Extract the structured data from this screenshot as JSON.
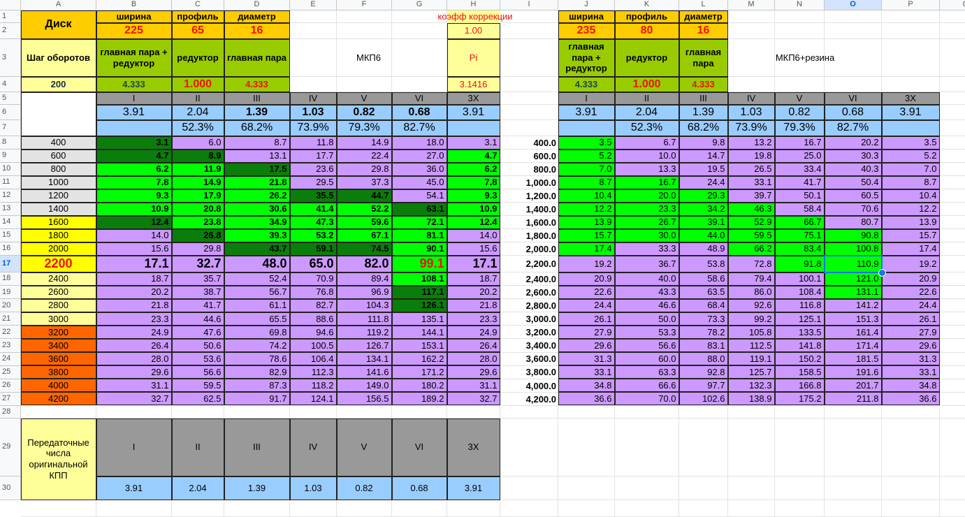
{
  "columns": [
    "A",
    "B",
    "C",
    "D",
    "E",
    "F",
    "G",
    "H",
    "I",
    "J",
    "K",
    "L",
    "M",
    "N",
    "O",
    "P",
    "Q"
  ],
  "selected_cell": "O17",
  "colors": {
    "purple": "#cc99ff",
    "green": "#00ff00",
    "dark_green": "#0b7d0b",
    "header_orange": "#ffcc00",
    "olive": "#99cc00",
    "light_yellow": "#ffff99",
    "yellow": "#ffff00",
    "orange": "#ff6600",
    "gray": "#999999",
    "blue": "#99ccff"
  },
  "left": {
    "disk_label": "Диск",
    "width_label": "ширина",
    "profile_label": "профиль",
    "diameter_label": "диаметр",
    "width": "225",
    "profile": "65",
    "diameter": "16",
    "correction_label": "коэфф коррекции",
    "correction": "1.00",
    "pi_label": "Pi",
    "pi": "3.1416",
    "step_label": "Шаг оборотов",
    "step": "200",
    "main_pair_reducer_label": "главная пара + редуктор",
    "reducer_label": "редуктор",
    "main_pair_label": "главная пара",
    "main_pair_reducer": "4.333",
    "reducer": "1.000",
    "main_pair": "4.333",
    "gearbox_label": "МКП6",
    "gears": [
      "I",
      "II",
      "III",
      "IV",
      "V",
      "VI",
      "3X"
    ],
    "ratios": [
      "3.91",
      "2.04",
      "1.39",
      "1.03",
      "0.82",
      "0.68",
      "3.91"
    ],
    "percents": [
      "",
      "52.3%",
      "68.2%",
      "73.9%",
      "79.3%",
      "82.7%",
      ""
    ],
    "rows": [
      {
        "rpm": "400",
        "fill": "lgray",
        "cells": "dpppppp",
        "values": [
          "3.1",
          "6.0",
          "8.7",
          "11.8",
          "14.9",
          "18.0",
          "3.1"
        ]
      },
      {
        "rpm": "600",
        "fill": "lgray",
        "cells": "ddppppg",
        "values": [
          "4.7",
          "8.9",
          "13.1",
          "17.7",
          "22.4",
          "27.0",
          "4.7"
        ]
      },
      {
        "rpm": "800",
        "fill": "lgray",
        "cells": "ggdpppg",
        "values": [
          "6.2",
          "11.9",
          "17.5",
          "23.6",
          "29.8",
          "36.0",
          "6.2"
        ]
      },
      {
        "rpm": "1000",
        "fill": "lgray",
        "cells": "gggpppg",
        "values": [
          "7.8",
          "14.9",
          "21.8",
          "29.5",
          "37.3",
          "45.0",
          "7.8"
        ]
      },
      {
        "rpm": "1200",
        "fill": "lgray",
        "cells": "gggddpg",
        "values": [
          "9.3",
          "17.9",
          "26.2",
          "35.5",
          "44.7",
          "54.1",
          "9.3"
        ]
      },
      {
        "rpm": "1400",
        "fill": "lgray",
        "cells": "gggggdg",
        "values": [
          "10.9",
          "20.8",
          "30.6",
          "41.4",
          "52.2",
          "63.1",
          "10.9"
        ]
      },
      {
        "rpm": "1600",
        "fill": "yel",
        "cells": "dgggggg",
        "values": [
          "12.4",
          "23.8",
          "34.9",
          "47.3",
          "59.6",
          "72.1",
          "12.4"
        ]
      },
      {
        "rpm": "1800",
        "fill": "yel",
        "cells": "pdggggp",
        "values": [
          "14.0",
          "26.8",
          "39.3",
          "53.2",
          "67.1",
          "81.1",
          "14.0"
        ]
      },
      {
        "rpm": "2000",
        "fill": "yel",
        "cells": "ppdddgp",
        "values": [
          "15.6",
          "29.8",
          "43.7",
          "59.1",
          "74.5",
          "90.1",
          "15.6"
        ]
      },
      {
        "rpm": "2200",
        "fill": "yel",
        "cells": "pppppgp",
        "values": [
          "17.1",
          "32.7",
          "48.0",
          "65.0",
          "82.0",
          "99.1",
          "17.1"
        ]
      },
      {
        "rpm": "2400",
        "fill": "lyel",
        "cells": "pppppgp",
        "values": [
          "18.7",
          "35.7",
          "52.4",
          "70.9",
          "89.4",
          "108.1",
          "18.7"
        ]
      },
      {
        "rpm": "2600",
        "fill": "lyel",
        "cells": "pppppdp",
        "values": [
          "20.2",
          "38.7",
          "56.7",
          "76.8",
          "96.9",
          "117.1",
          "20.2"
        ]
      },
      {
        "rpm": "2800",
        "fill": "lyel",
        "cells": "pppppdp",
        "values": [
          "21.8",
          "41.7",
          "61.1",
          "82.7",
          "104.3",
          "126.1",
          "21.8"
        ]
      },
      {
        "rpm": "3000",
        "fill": "lyel",
        "cells": "ppppppp",
        "values": [
          "23.3",
          "44.6",
          "65.5",
          "88.6",
          "111.8",
          "135.1",
          "23.3"
        ]
      },
      {
        "rpm": "3200",
        "fill": "org2",
        "cells": "ppppppp",
        "values": [
          "24.9",
          "47.6",
          "69.8",
          "94.6",
          "119.2",
          "144.1",
          "24.9"
        ]
      },
      {
        "rpm": "3400",
        "fill": "org2",
        "cells": "ppppppp",
        "values": [
          "26.4",
          "50.6",
          "74.2",
          "100.5",
          "126.7",
          "153.1",
          "26.4"
        ]
      },
      {
        "rpm": "3600",
        "fill": "org2",
        "cells": "ppppppp",
        "values": [
          "28.0",
          "53.6",
          "78.6",
          "106.4",
          "134.1",
          "162.2",
          "28.0"
        ]
      },
      {
        "rpm": "3800",
        "fill": "org2",
        "cells": "ppppppp",
        "values": [
          "29.6",
          "56.6",
          "82.9",
          "112.3",
          "141.6",
          "171.2",
          "29.6"
        ]
      },
      {
        "rpm": "4000",
        "fill": "org2",
        "cells": "ppppppp",
        "values": [
          "31.1",
          "59.5",
          "87.3",
          "118.2",
          "149.0",
          "180.2",
          "31.1"
        ]
      },
      {
        "rpm": "4200",
        "fill": "org2",
        "cells": "ppppppp",
        "values": [
          "32.7",
          "62.5",
          "91.7",
          "124.1",
          "156.5",
          "189.2",
          "32.7"
        ]
      }
    ]
  },
  "right": {
    "width_label": "ширина",
    "profile_label": "профиль",
    "diameter_label": "диаметр",
    "width": "235",
    "profile": "80",
    "diameter": "16",
    "main_pair_reducer_label": "главная пара + редуктор",
    "reducer_label": "редуктор",
    "main_pair_label": "главная пара",
    "main_pair_reducer": "4.333",
    "reducer": "1.000",
    "main_pair": "4.333",
    "gearbox_label": "МКП6+резина",
    "gears": [
      "I",
      "II",
      "III",
      "IV",
      "V",
      "VI",
      "3X"
    ],
    "ratios": [
      "3.91",
      "2.04",
      "1.39",
      "1.03",
      "0.82",
      "0.68",
      "3.91"
    ],
    "percents": [
      "",
      "52.3%",
      "68.2%",
      "73.9%",
      "79.3%",
      "82.7%",
      ""
    ],
    "rows": [
      {
        "rpm": "400.0",
        "cells": "gpppppp",
        "values": [
          "3.5",
          "6.7",
          "9.8",
          "13.2",
          "16.7",
          "20.2",
          "3.5"
        ]
      },
      {
        "rpm": "600.0",
        "cells": "gpppppp",
        "values": [
          "5.2",
          "10.0",
          "14.7",
          "19.8",
          "25.0",
          "30.3",
          "5.2"
        ]
      },
      {
        "rpm": "800.0",
        "cells": "gpppppp",
        "values": [
          "7.0",
          "13.3",
          "19.5",
          "26.5",
          "33.4",
          "40.3",
          "7.0"
        ]
      },
      {
        "rpm": "1,000.0",
        "cells": "ggppppp",
        "values": [
          "8.7",
          "16.7",
          "24.4",
          "33.1",
          "41.7",
          "50.4",
          "8.7"
        ]
      },
      {
        "rpm": "1,200.0",
        "cells": "gggpppp",
        "values": [
          "10.4",
          "20.0",
          "29.3",
          "39.7",
          "50.1",
          "60.5",
          "10.4"
        ]
      },
      {
        "rpm": "1,400.0",
        "cells": "ggggppp",
        "values": [
          "12.2",
          "23.3",
          "34.2",
          "46.3",
          "58.4",
          "70.6",
          "12.2"
        ]
      },
      {
        "rpm": "1,600.0",
        "cells": "gggggpp",
        "values": [
          "13.9",
          "26.7",
          "39.1",
          "52.9",
          "66.7",
          "80.7",
          "13.9"
        ]
      },
      {
        "rpm": "1,800.0",
        "cells": "ggggggp",
        "values": [
          "15.7",
          "30.0",
          "44.0",
          "59.5",
          "75.1",
          "90.8",
          "15.7"
        ]
      },
      {
        "rpm": "2,000.0",
        "cells": "gppgggp",
        "values": [
          "17.4",
          "33.3",
          "48.9",
          "66.2",
          "83.4",
          "100.8",
          "17.4"
        ]
      },
      {
        "rpm": "2,200.0",
        "cells": "ppppggp",
        "values": [
          "19.2",
          "36.7",
          "53.8",
          "72.8",
          "91.8",
          "110.9",
          "19.2"
        ]
      },
      {
        "rpm": "2,400.0",
        "cells": "pppppgp",
        "values": [
          "20.9",
          "40.0",
          "58.6",
          "79.4",
          "100.1",
          "121.0",
          "20.9"
        ]
      },
      {
        "rpm": "2,600.0",
        "cells": "pppppgp",
        "values": [
          "22.6",
          "43.3",
          "63.5",
          "86.0",
          "108.4",
          "131.1",
          "22.6"
        ]
      },
      {
        "rpm": "2,800.0",
        "cells": "ppppppp",
        "values": [
          "24.4",
          "46.6",
          "68.4",
          "92.6",
          "116.8",
          "141.2",
          "24.4"
        ]
      },
      {
        "rpm": "3,000.0",
        "cells": "ppppppp",
        "values": [
          "26.1",
          "50.0",
          "73.3",
          "99.2",
          "125.1",
          "151.3",
          "26.1"
        ]
      },
      {
        "rpm": "3,200.0",
        "cells": "ppppppp",
        "values": [
          "27.9",
          "53.3",
          "78.2",
          "105.8",
          "133.5",
          "161.4",
          "27.9"
        ]
      },
      {
        "rpm": "3,400.0",
        "cells": "ppppppp",
        "values": [
          "29.6",
          "56.6",
          "83.1",
          "112.5",
          "141.8",
          "171.4",
          "29.6"
        ]
      },
      {
        "rpm": "3,600.0",
        "cells": "ppppppp",
        "values": [
          "31.3",
          "60.0",
          "88.0",
          "119.1",
          "150.2",
          "181.5",
          "31.3"
        ]
      },
      {
        "rpm": "3,800.0",
        "cells": "ppppppp",
        "values": [
          "33.1",
          "63.3",
          "92.8",
          "125.7",
          "158.5",
          "191.6",
          "33.1"
        ]
      },
      {
        "rpm": "4,000.0",
        "cells": "ppppppp",
        "values": [
          "34.8",
          "66.6",
          "97.7",
          "132.3",
          "166.8",
          "201.7",
          "34.8"
        ]
      },
      {
        "rpm": "4,200.0",
        "cells": "ppppppp",
        "values": [
          "36.6",
          "70.0",
          "102.6",
          "138.9",
          "175.2",
          "211.8",
          "36.6"
        ]
      }
    ]
  },
  "bottom": {
    "label": "Передаточные числа оригинальной КПП",
    "gears": [
      "I",
      "II",
      "III",
      "IV",
      "V",
      "VI",
      "3X"
    ],
    "ratios": [
      "3.91",
      "2.04",
      "1.39",
      "1.03",
      "0.82",
      "0.68",
      "3.91"
    ]
  }
}
